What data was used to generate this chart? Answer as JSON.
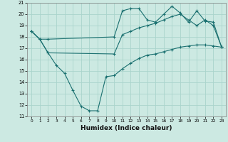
{
  "xlabel": "Humidex (Indice chaleur)",
  "xlim": [
    -0.5,
    23.5
  ],
  "ylim": [
    11,
    21
  ],
  "yticks": [
    11,
    12,
    13,
    14,
    15,
    16,
    17,
    18,
    19,
    20,
    21
  ],
  "xticks": [
    0,
    1,
    2,
    3,
    4,
    5,
    6,
    7,
    8,
    9,
    10,
    11,
    12,
    13,
    14,
    15,
    16,
    17,
    18,
    19,
    20,
    21,
    22,
    23
  ],
  "background_color": "#cce9e2",
  "grid_color": "#aad4cc",
  "line_color": "#1a7070",
  "line1_x": [
    0,
    1,
    2,
    10,
    11,
    12,
    13,
    14,
    15,
    16,
    17,
    18,
    19,
    20,
    21,
    22,
    23
  ],
  "line1_y": [
    18.5,
    17.8,
    17.8,
    18.0,
    20.3,
    20.5,
    20.5,
    19.5,
    19.3,
    20.0,
    20.7,
    20.1,
    19.3,
    20.3,
    19.4,
    19.3,
    17.1
  ],
  "line2_x": [
    0,
    1,
    2,
    10,
    11,
    12,
    13,
    14,
    15,
    16,
    17,
    18,
    19,
    20,
    21,
    22,
    23
  ],
  "line2_y": [
    18.5,
    17.8,
    16.6,
    16.5,
    18.2,
    18.5,
    18.8,
    19.0,
    19.2,
    19.5,
    19.8,
    20.0,
    19.5,
    19.0,
    19.5,
    19.0,
    17.1
  ],
  "line3_x": [
    0,
    1,
    2,
    3,
    4,
    5,
    6,
    7,
    8,
    9,
    10,
    11,
    12,
    13,
    14,
    15,
    16,
    17,
    18,
    19,
    20,
    21,
    22,
    23
  ],
  "line3_y": [
    18.5,
    17.8,
    16.6,
    15.5,
    14.8,
    13.3,
    11.9,
    11.5,
    11.5,
    14.5,
    14.6,
    15.2,
    15.7,
    16.1,
    16.4,
    16.5,
    16.7,
    16.9,
    17.1,
    17.2,
    17.3,
    17.3,
    17.2,
    17.1
  ]
}
